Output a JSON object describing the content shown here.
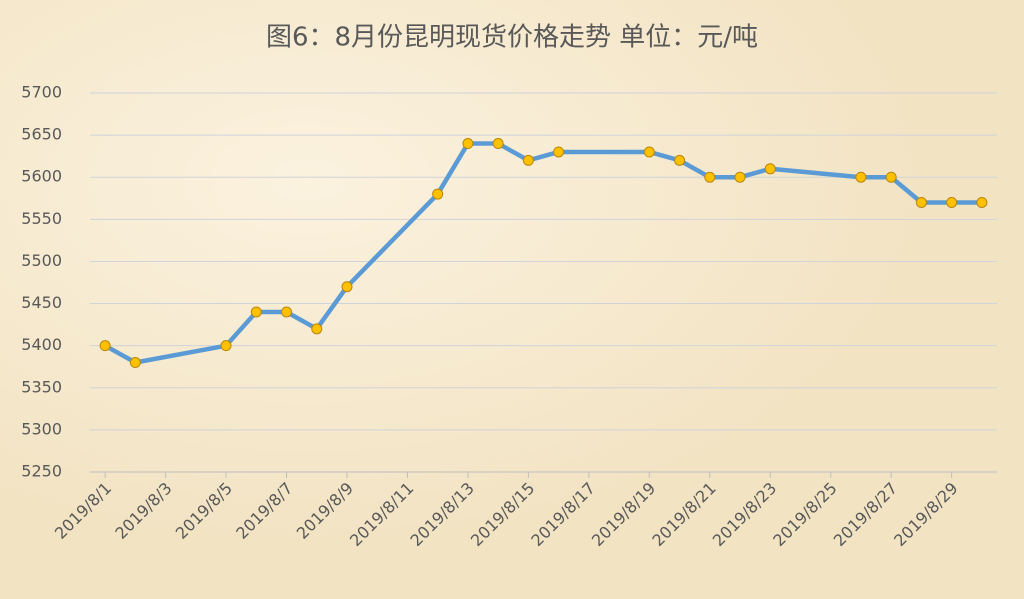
{
  "chart_data": {
    "type": "line",
    "title": "图6：8月份昆明现货价格走势  单位：元/吨",
    "x": [
      "2019/8/1",
      "2019/8/2",
      "2019/8/5",
      "2019/8/6",
      "2019/8/7",
      "2019/8/8",
      "2019/8/9",
      "2019/8/12",
      "2019/8/13",
      "2019/8/14",
      "2019/8/15",
      "2019/8/16",
      "2019/8/19",
      "2019/8/20",
      "2019/8/21",
      "2019/8/22",
      "2019/8/23",
      "2019/8/26",
      "2019/8/27",
      "2019/8/28",
      "2019/8/29",
      "2019/8/30"
    ],
    "values": [
      5400,
      5380,
      5400,
      5440,
      5440,
      5420,
      5470,
      5580,
      5640,
      5640,
      5620,
      5630,
      5630,
      5620,
      5600,
      5600,
      5610,
      5600,
      5600,
      5570,
      5570,
      5570
    ],
    "color": "#5b9bd5",
    "marker_color": "#ffc000",
    "xlim": [
      "2019/8/1",
      "2019/8/30"
    ],
    "xticks": [
      "2019/8/1",
      "2019/8/3",
      "2019/8/5",
      "2019/8/7",
      "2019/8/9",
      "2019/8/11",
      "2019/8/13",
      "2019/8/15",
      "2019/8/17",
      "2019/8/19",
      "2019/8/21",
      "2019/8/23",
      "2019/8/25",
      "2019/8/27",
      "2019/8/29"
    ],
    "ylim": [
      5250,
      5700
    ],
    "yticks": [
      5250,
      5300,
      5350,
      5400,
      5450,
      5500,
      5550,
      5600,
      5650,
      5700
    ],
    "grid": true
  }
}
